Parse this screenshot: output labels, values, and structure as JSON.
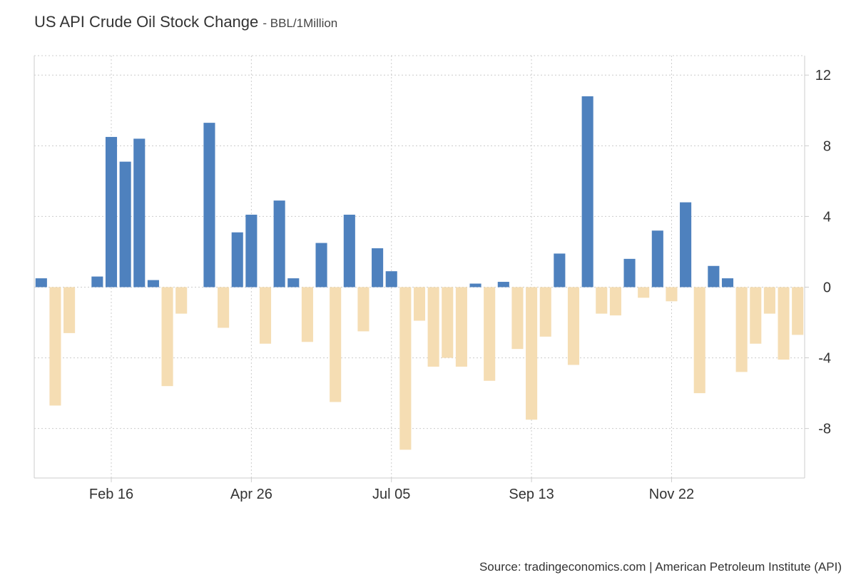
{
  "header": {
    "title": "US API Crude Oil Stock Change",
    "subtitle": "- BBL/1Million"
  },
  "footer": {
    "source": "Source: tradingeconomics.com | American Petroleum Institute (API)"
  },
  "colors": {
    "positive": "#4e81be",
    "negative": "#f5ddb3",
    "grid": "#cccccc",
    "axis": "#cccccc"
  },
  "chart_data": {
    "type": "bar",
    "title": "US API Crude Oil Stock Change",
    "unit": "BBL/1Million",
    "xlabel": "",
    "ylabel": "",
    "ylim": [
      -10.8,
      13.1
    ],
    "yticks": [
      12,
      8,
      4,
      0,
      -4,
      -8
    ],
    "x_tick_labels": [
      "Feb 16",
      "Apr 26",
      "Jul 05",
      "Sep 13",
      "Nov 22"
    ],
    "x_tick_bar_index": [
      5,
      15,
      25,
      35,
      45
    ],
    "grid": true,
    "y_axis_position": "right",
    "values": [
      0.5,
      -6.7,
      -2.6,
      0,
      0.6,
      8.5,
      7.1,
      8.4,
      0.4,
      -5.6,
      -1.5,
      0,
      9.3,
      -2.3,
      3.1,
      4.1,
      -3.2,
      4.9,
      0.5,
      -3.1,
      2.5,
      -6.5,
      4.1,
      -2.5,
      2.2,
      0.9,
      -9.2,
      -1.9,
      -4.5,
      -4.0,
      -4.5,
      0.2,
      -5.3,
      0.3,
      -3.5,
      -7.5,
      -2.8,
      1.9,
      -4.4,
      10.8,
      -1.5,
      -1.6,
      1.6,
      -0.6,
      3.2,
      -0.8,
      4.8,
      -6.0,
      1.2,
      0.5,
      -4.8,
      -3.2,
      -1.5,
      -4.1,
      -2.7
    ]
  }
}
